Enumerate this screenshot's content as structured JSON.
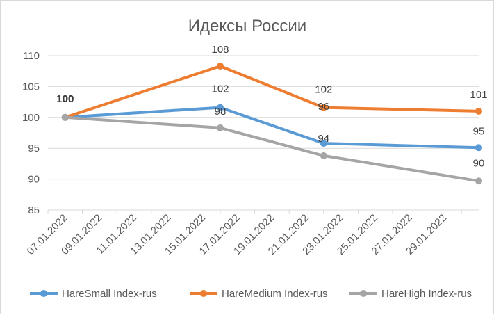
{
  "chart_data": {
    "type": "line",
    "title": "Идексы России",
    "x_dates": [
      "2022-01-07",
      "2022-01-16",
      "2022-01-22",
      "2022-01-31"
    ],
    "x_tick_labels": [
      "07.01.2022",
      "09.01.2022",
      "11.01.2022",
      "13.01.2022",
      "15.01.2022",
      "17.01.2022",
      "19.01.2022",
      "21.01.2022",
      "23.01.2022",
      "25.01.2022",
      "27.01.2022",
      "29.01.2022"
    ],
    "ylim": [
      85,
      110
    ],
    "y_ticks": [
      85,
      90,
      95,
      100,
      105,
      110
    ],
    "grid": "horizontal",
    "legend": "bottom",
    "series": [
      {
        "name": "HareSmall Index-rus",
        "color": "#5b9bd5",
        "values": [
          100,
          101.6,
          95.8,
          95.1
        ],
        "labels": [
          "100",
          "102",
          "96",
          "95"
        ]
      },
      {
        "name": "HareMedium Index-rus",
        "color": "#ed7d31",
        "values": [
          100,
          108.3,
          101.6,
          101.0
        ],
        "labels": [
          "100",
          "108",
          "102",
          "101"
        ]
      },
      {
        "name": "HareHigh Index-rus",
        "color": "#a5a5a5",
        "values": [
          100,
          98.3,
          93.8,
          89.7
        ],
        "labels": [
          "100",
          "98",
          "94",
          "90"
        ]
      }
    ]
  }
}
